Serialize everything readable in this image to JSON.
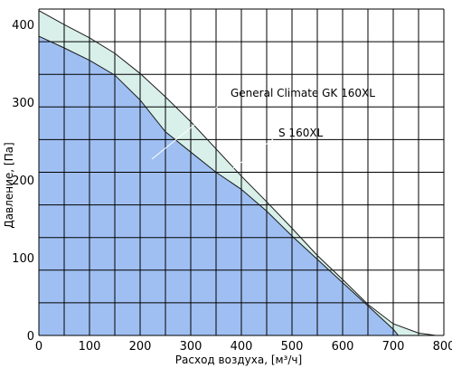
{
  "chart_data": {
    "type": "area",
    "xlabel": "Расход воздуха, [м³/ч]",
    "ylabel": "Давление, [Па]",
    "xlim": [
      0,
      800
    ],
    "ylim": [
      0,
      420
    ],
    "x_ticks": [
      0,
      100,
      200,
      300,
      400,
      500,
      600,
      700,
      800
    ],
    "y_ticks": [
      0,
      100,
      200,
      300,
      400
    ],
    "grid": true,
    "series": [
      {
        "name": "S 160XL",
        "color": "#d9f0ea",
        "points": [
          [
            0,
            418
          ],
          [
            50,
            400
          ],
          [
            100,
            383
          ],
          [
            150,
            363
          ],
          [
            200,
            337
          ],
          [
            250,
            307
          ],
          [
            300,
            275
          ],
          [
            350,
            240
          ],
          [
            400,
            205
          ],
          [
            450,
            172
          ],
          [
            500,
            138
          ],
          [
            550,
            103
          ],
          [
            600,
            72
          ],
          [
            650,
            40
          ],
          [
            700,
            15
          ],
          [
            750,
            3
          ],
          [
            785,
            0
          ]
        ]
      },
      {
        "name": "General Climate GK 160XL",
        "color": "#9fbff2",
        "points": [
          [
            0,
            385
          ],
          [
            50,
            370
          ],
          [
            100,
            354
          ],
          [
            150,
            335
          ],
          [
            200,
            303
          ],
          [
            250,
            262
          ],
          [
            300,
            236
          ],
          [
            350,
            210
          ],
          [
            400,
            188
          ],
          [
            450,
            160
          ],
          [
            500,
            128
          ],
          [
            550,
            98
          ],
          [
            600,
            68
          ],
          [
            650,
            38
          ],
          [
            700,
            8
          ],
          [
            710,
            0
          ]
        ]
      }
    ],
    "annotations": [
      {
        "text": "General Climate GK 160XL",
        "series": 1
      },
      {
        "text": "S 160XL",
        "series": 0
      }
    ]
  }
}
